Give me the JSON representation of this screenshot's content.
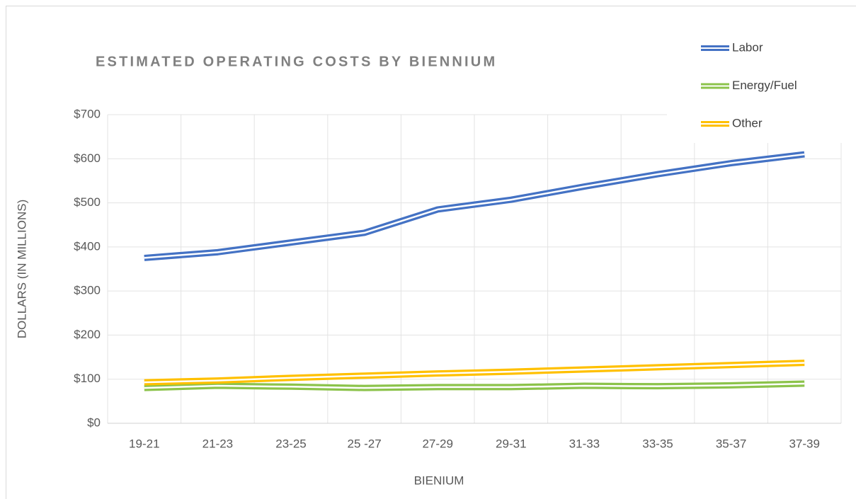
{
  "chart_data": {
    "type": "line",
    "title": "ESTIMATED OPERATING COSTS BY BIENNIUM",
    "x_label": "BIENIUM",
    "y_label": "DOLLARS (IN MILLIONS)",
    "categories": [
      "19-21",
      "21-23",
      "23-25",
      "25 -27",
      "27-29",
      "29-31",
      "31-33",
      "33-35",
      "35-37",
      "37-39"
    ],
    "series": [
      {
        "name": "Labor",
        "color": "#4472c4",
        "values": [
          375,
          388,
          410,
          432,
          485,
          507,
          537,
          565,
          590,
          610
        ]
      },
      {
        "name": "Energy/Fuel",
        "color": "#8cc34b",
        "values": [
          80,
          85,
          83,
          80,
          82,
          82,
          85,
          84,
          86,
          90
        ]
      },
      {
        "name": "Other",
        "color": "#ffc000",
        "values": [
          93,
          97,
          103,
          108,
          113,
          117,
          122,
          127,
          132,
          137
        ]
      }
    ],
    "ylim": [
      0,
      700
    ],
    "yticks": [
      {
        "value": 0,
        "label": "$0"
      },
      {
        "value": 100,
        "label": "$100"
      },
      {
        "value": 200,
        "label": "$200"
      },
      {
        "value": 300,
        "label": "$300"
      },
      {
        "value": 400,
        "label": "$400"
      },
      {
        "value": 500,
        "label": "$500"
      },
      {
        "value": 600,
        "label": "$600"
      },
      {
        "value": 700,
        "label": "$700"
      }
    ],
    "grid": true,
    "legend": "top-right"
  }
}
